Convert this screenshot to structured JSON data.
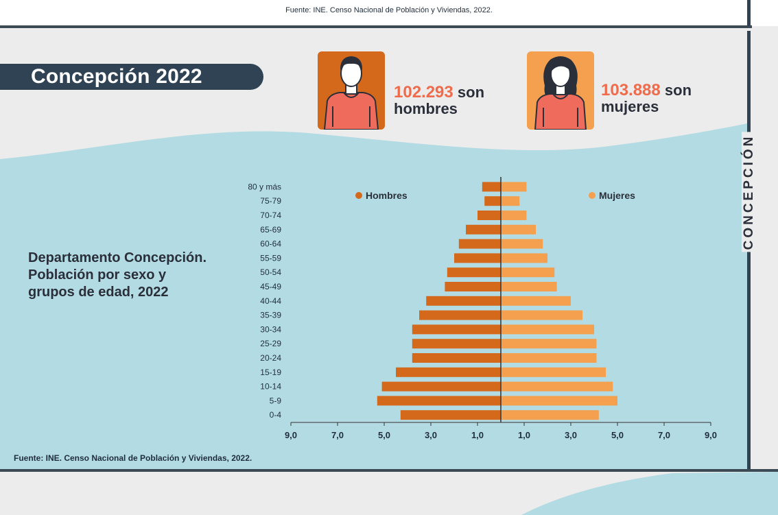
{
  "top_source": "Fuente: INE. Censo Nacional de Población y Viviendas, 2022.",
  "title": "Concepción 2022",
  "men_stat": {
    "number": "102.293",
    "suffix": "son",
    "word": "hombres"
  },
  "women_stat": {
    "number": "103.888",
    "suffix": "son",
    "word": "mujeres"
  },
  "side_label": "CONCEPCIÓN",
  "chart_title": "Departamento Concepción. Población por sexo y grupos de edad, 2022",
  "bottom_source": "Fuente: INE. Censo Nacional de Población y Viviendas, 2022.",
  "colors": {
    "men": "#d4691b",
    "women": "#f4a04f",
    "dark": "#2f4354",
    "accent": "#ef6b4b",
    "water": "#b3dbe3"
  },
  "chart_data": {
    "type": "bar",
    "orientation": "horizontal-population-pyramid",
    "categories": [
      "80 y más",
      "75-79",
      "70-74",
      "65-69",
      "60-64",
      "55-59",
      "50-54",
      "45-49",
      "40-44",
      "35-39",
      "30-34",
      "25-29",
      "20-24",
      "15-19",
      "10-14",
      "5-9",
      "0-4"
    ],
    "series": [
      {
        "name": "Hombres",
        "values": [
          0.8,
          0.7,
          1.0,
          1.5,
          1.8,
          2.0,
          2.3,
          2.4,
          3.2,
          3.5,
          3.8,
          3.8,
          3.8,
          4.5,
          5.1,
          5.3,
          4.3
        ]
      },
      {
        "name": "Mujeres",
        "values": [
          1.1,
          0.8,
          1.1,
          1.5,
          1.8,
          2.0,
          2.3,
          2.4,
          3.0,
          3.5,
          4.0,
          4.1,
          4.1,
          4.5,
          4.8,
          5.0,
          4.2
        ]
      }
    ],
    "xlim": [
      -9,
      9
    ],
    "x_tick_labels": [
      "9,0",
      "7,0",
      "5,0",
      "3,0",
      "1,0",
      "1,0",
      "3,0",
      "5,0",
      "7,0",
      "9,0"
    ],
    "x_tick_values": [
      -9,
      -7,
      -5,
      -3,
      -1,
      1,
      3,
      5,
      7,
      9
    ],
    "legend": [
      "Hombres",
      "Mujeres"
    ],
    "legend_placement": "top",
    "grid": false
  }
}
